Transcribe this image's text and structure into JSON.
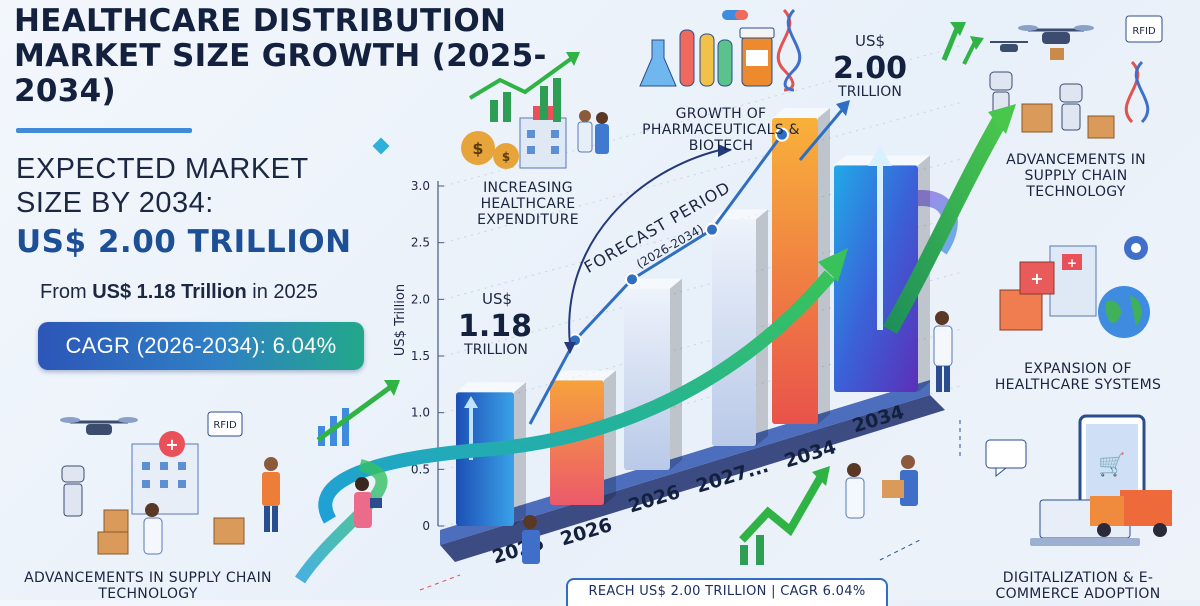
{
  "title": "HEALTHCARE DISTRIBUTION MARKET SIZE GROWTH (2025-2034)",
  "expected_label": "EXPECTED MARKET SIZE BY 2034:",
  "expected_value": "US$ 2.00 TRILLION",
  "from_prefix": "From ",
  "from_value": "US$ 1.18 Trillion",
  "from_suffix": " in 2025",
  "cagr_text": "CAGR (2026-2034): 6.04%",
  "drivers": {
    "pharma": "GROWTH OF PHARMACEUTICALS & BIOTECH",
    "expenditure": "INCREASING HEALTHCARE EXPENDITURE",
    "supply_chain_right": "ADVANCEMENTS IN SUPPLY CHAIN TECHNOLOGY",
    "healthcare_systems": "EXPANSION OF HEALTHCARE SYSTEMS",
    "digitalization": "DIGITALIZATION & E-COMMERCE ADOPTION",
    "supply_chain_left": "ADVANCEMENTS IN SUPPLY CHAIN TECHNOLOGY"
  },
  "icon_labels": {
    "rfid_top": "RFID",
    "rfid_left": "RFID"
  },
  "footer_text": "REACH US$ 2.00 TRILLION | CAGR 6.04%",
  "colors": {
    "title": "#13213f",
    "accent_blue": "#1c4f96",
    "green": "#22a88a",
    "arrow_green": "#2fb344"
  },
  "chart_data": {
    "type": "bar",
    "ylabel": "US$ Trillion",
    "ylim": [
      0,
      3.0
    ],
    "yticks": [
      "0",
      "0.5",
      "1.0",
      "1.5",
      "2.0",
      "2.5",
      "3.0"
    ],
    "categories": [
      "2025",
      "2026",
      "2026",
      "2027...",
      "2034",
      "2034"
    ],
    "values": [
      1.18,
      1.1,
      1.6,
      2.0,
      2.7,
      2.0
    ],
    "bar_colors": [
      "#2a63c9",
      "#f08a3c",
      "#c7d4ee",
      "#c7d4ee",
      "#f06d3a",
      "#3b56d6"
    ],
    "annotations": {
      "start_value": "US$ 1.18 TRILLION",
      "start_prefix": "US$",
      "start_number": "1.18",
      "start_unit": "TRILLION",
      "end_prefix": "US$",
      "end_number": "2.00",
      "end_unit": "TRILLION",
      "forecast_period": "FORECAST PERIOD",
      "forecast_years": "(2026-2034)"
    }
  }
}
